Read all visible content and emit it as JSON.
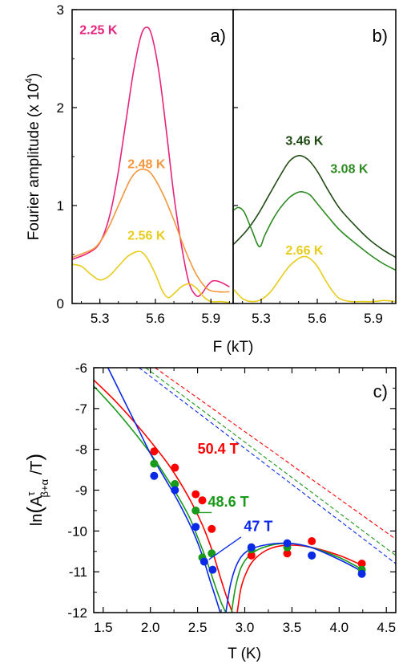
{
  "colors": {
    "axis": "#000000",
    "magenta": "#e8237c",
    "orange": "#f5963c",
    "yellow": "#e8cc1a",
    "dark_green": "#1f4a14",
    "green": "#2e8b22",
    "red": "#ff0000",
    "green_c": "#1a9a1a",
    "blue": "#0a2ae8"
  },
  "chart_data": [
    {
      "panel": "a)",
      "type": "line",
      "xlabel": "",
      "ylabel": "Fourier amplitude (x 10^4)",
      "ylabel_parts": {
        "main": "Fourier amplitude (x 10",
        "sup": "4",
        "end": ")"
      },
      "xlim": [
        5.15,
        6.02
      ],
      "ylim": [
        0,
        3
      ],
      "xticks": [
        "5.3",
        "5.6",
        "5.9"
      ],
      "xtick_values": [
        5.3,
        5.6,
        5.9
      ],
      "yticks": [
        "0",
        "1",
        "2",
        "3"
      ],
      "ytick_values": [
        0,
        1,
        2,
        3
      ],
      "series": [
        {
          "name": "2.25 K",
          "color_key": "magenta",
          "x": [
            5.15,
            5.22,
            5.28,
            5.32,
            5.36,
            5.4,
            5.44,
            5.48,
            5.52,
            5.55,
            5.58,
            5.62,
            5.66,
            5.7,
            5.74,
            5.78,
            5.82,
            5.85,
            5.88,
            5.91,
            5.95,
            6.0
          ],
          "y": [
            0.45,
            0.5,
            0.57,
            0.7,
            0.95,
            1.35,
            1.85,
            2.35,
            2.72,
            2.82,
            2.74,
            2.35,
            1.75,
            1.1,
            0.6,
            0.22,
            0.08,
            0.1,
            0.18,
            0.23,
            0.22,
            0.17
          ]
        },
        {
          "name": "2.48 K",
          "color_key": "orange",
          "x": [
            5.15,
            5.22,
            5.28,
            5.34,
            5.4,
            5.46,
            5.5,
            5.54,
            5.58,
            5.64,
            5.7,
            5.76,
            5.82,
            5.88,
            5.94,
            6.0
          ],
          "y": [
            0.47,
            0.52,
            0.58,
            0.75,
            1.0,
            1.25,
            1.35,
            1.37,
            1.32,
            1.12,
            0.85,
            0.55,
            0.3,
            0.15,
            0.12,
            0.12
          ]
        },
        {
          "name": "2.56 K",
          "color_key": "yellow",
          "x": [
            5.15,
            5.2,
            5.25,
            5.3,
            5.35,
            5.4,
            5.45,
            5.5,
            5.53,
            5.56,
            5.6,
            5.64,
            5.67,
            5.7,
            5.74,
            5.78,
            5.82,
            5.86,
            5.9,
            5.95,
            6.0
          ],
          "y": [
            0.4,
            0.38,
            0.3,
            0.24,
            0.28,
            0.38,
            0.48,
            0.53,
            0.52,
            0.45,
            0.3,
            0.12,
            0.06,
            0.1,
            0.17,
            0.2,
            0.16,
            0.07,
            0.02,
            0.02,
            0.01
          ]
        }
      ],
      "labels": [
        {
          "text": "2.25 K",
          "color_key": "magenta",
          "x": 5.19,
          "y": 2.75
        },
        {
          "text": "2.48 K",
          "color_key": "orange",
          "x": 5.45,
          "y": 1.38
        },
        {
          "text": "2.56 K",
          "color_key": "yellow",
          "x": 5.45,
          "y": 0.65
        }
      ]
    },
    {
      "panel": "b)",
      "type": "line",
      "xlabel": "F (kT)",
      "xlim": [
        5.15,
        6.02
      ],
      "ylim": [
        0,
        3
      ],
      "xticks": [
        "5.3",
        "5.6",
        "5.9"
      ],
      "xtick_values": [
        5.3,
        5.6,
        5.9
      ],
      "series": [
        {
          "name": "3.46 K",
          "color_key": "dark_green",
          "x": [
            5.15,
            5.22,
            5.28,
            5.34,
            5.4,
            5.45,
            5.5,
            5.55,
            5.6,
            5.66,
            5.72,
            5.8,
            5.88,
            5.95,
            6.02
          ],
          "y": [
            0.6,
            0.74,
            0.9,
            1.1,
            1.3,
            1.45,
            1.51,
            1.47,
            1.35,
            1.15,
            0.97,
            0.8,
            0.65,
            0.55,
            0.47
          ]
        },
        {
          "name": "3.08 K",
          "color_key": "green",
          "x": [
            5.15,
            5.18,
            5.21,
            5.25,
            5.29,
            5.32,
            5.36,
            5.4,
            5.45,
            5.49,
            5.52,
            5.56,
            5.6,
            5.66,
            5.72,
            5.8,
            5.88,
            5.95,
            6.02
          ],
          "y": [
            0.95,
            0.98,
            0.93,
            0.75,
            0.58,
            0.7,
            0.85,
            0.97,
            1.08,
            1.13,
            1.14,
            1.11,
            1.02,
            0.88,
            0.75,
            0.62,
            0.5,
            0.41,
            0.34
          ]
        },
        {
          "name": "2.66 K",
          "color_key": "yellow",
          "x": [
            5.15,
            5.2,
            5.25,
            5.3,
            5.35,
            5.4,
            5.45,
            5.5,
            5.53,
            5.56,
            5.6,
            5.64,
            5.68,
            5.72,
            5.78,
            5.84,
            5.9,
            5.96,
            6.02
          ],
          "y": [
            0.15,
            0.05,
            0.02,
            0.04,
            0.12,
            0.25,
            0.38,
            0.46,
            0.48,
            0.46,
            0.38,
            0.25,
            0.13,
            0.05,
            0.02,
            0.02,
            0.02,
            0.03,
            0.02
          ]
        }
      ],
      "labels": [
        {
          "text": "3.46 K",
          "color_key": "dark_green",
          "x": 5.43,
          "y": 1.62
        },
        {
          "text": "3.08 K",
          "color_key": "green",
          "x": 5.67,
          "y": 1.33
        },
        {
          "text": "2.66 K",
          "color_key": "yellow",
          "x": 5.43,
          "y": 0.5
        }
      ]
    },
    {
      "panel": "c)",
      "type": "scatter",
      "xlabel": "T (K)",
      "ylabel": "ln(A^τ_β+α / T)",
      "ylabel_parts": {
        "prefix": "ln",
        "A": "A",
        "sup": "τ",
        "sub": "β+α",
        "suffix": " /T"
      },
      "xlim": [
        1.4,
        4.6
      ],
      "ylim": [
        -12,
        -6
      ],
      "xticks": [
        "1.5",
        "2.0",
        "2.5",
        "3.0",
        "3.5",
        "4.0",
        "4.5"
      ],
      "xtick_values": [
        1.5,
        2.0,
        2.5,
        3.0,
        3.5,
        4.0,
        4.5
      ],
      "yticks": [
        "-6",
        "-7",
        "-8",
        "-9",
        "-10",
        "-11",
        "-12"
      ],
      "ytick_values": [
        -6,
        -7,
        -8,
        -9,
        -10,
        -11,
        -12
      ],
      "series": [
        {
          "name": "50.4 T",
          "color_key": "red",
          "points_x": [
            2.04,
            2.26,
            2.48,
            2.55,
            2.65,
            3.07,
            3.45,
            3.71,
            4.24
          ],
          "points_y": [
            -8.05,
            -8.45,
            -9.1,
            -9.25,
            -9.95,
            -10.6,
            -10.55,
            -10.25,
            -10.8
          ],
          "fit_left": {
            "x": [
              1.4,
              1.6,
              1.8,
              2.0,
              2.2,
              2.4,
              2.55,
              2.65,
              2.75,
              2.82,
              2.87
            ],
            "y": [
              -6.3,
              -6.75,
              -7.25,
              -7.8,
              -8.4,
              -9.15,
              -9.85,
              -10.45,
              -11.2,
              -11.7,
              -12.0
            ]
          },
          "fit_right": {
            "x": [
              2.92,
              2.96,
              3.02,
              3.1,
              3.25,
              3.45,
              3.7,
              4.0,
              4.25
            ],
            "y": [
              -12.0,
              -11.4,
              -11.0,
              -10.7,
              -10.45,
              -10.35,
              -10.4,
              -10.6,
              -10.85
            ]
          },
          "dashed": {
            "x": [
              2.05,
              4.6
            ],
            "y": [
              -6.0,
              -10.2
            ]
          }
        },
        {
          "name": "48.6 T",
          "color_key": "green_c",
          "points_x": [
            2.04,
            2.26,
            2.48,
            2.55,
            2.65,
            3.07,
            3.45,
            3.71,
            4.24
          ],
          "points_y": [
            -8.35,
            -8.85,
            -9.5,
            -10.65,
            -10.55,
            -10.45,
            -10.4,
            -10.6,
            -10.95
          ],
          "fit_left": {
            "x": [
              1.4,
              1.6,
              1.8,
              2.0,
              2.2,
              2.4,
              2.5,
              2.6,
              2.68,
              2.75,
              2.8
            ],
            "y": [
              -6.45,
              -6.95,
              -7.5,
              -8.1,
              -8.8,
              -9.6,
              -10.15,
              -10.75,
              -11.3,
              -11.75,
              -12.0
            ]
          },
          "fit_right": {
            "x": [
              2.86,
              2.9,
              2.96,
              3.05,
              3.2,
              3.45,
              3.7,
              4.0,
              4.25
            ],
            "y": [
              -12.0,
              -11.4,
              -10.9,
              -10.6,
              -10.4,
              -10.3,
              -10.4,
              -10.65,
              -10.95
            ]
          },
          "dashed": {
            "x": [
              1.95,
              4.6
            ],
            "y": [
              -6.0,
              -10.6
            ]
          }
        },
        {
          "name": "47 T",
          "color_key": "blue",
          "points_x": [
            2.04,
            2.26,
            2.48,
            2.57,
            2.66,
            3.07,
            3.45,
            3.71,
            4.24
          ],
          "points_y": [
            -8.65,
            -9.0,
            -9.9,
            -10.75,
            -10.95,
            -10.4,
            -10.3,
            -10.6,
            -11.05
          ],
          "fit_left": {
            "x": [
              1.55,
              1.7,
              1.85,
              2.0,
              2.15,
              2.3,
              2.45,
              2.55,
              2.63,
              2.7,
              2.74
            ],
            "y": [
              -6.0,
              -6.7,
              -7.4,
              -8.1,
              -8.7,
              -9.3,
              -10.0,
              -10.6,
              -11.2,
              -11.7,
              -12.0
            ]
          },
          "fit_right": {
            "x": [
              2.8,
              2.85,
              2.92,
              3.02,
              3.2,
              3.45,
              3.7,
              4.0,
              4.25
            ],
            "y": [
              -12.0,
              -11.3,
              -10.8,
              -10.5,
              -10.35,
              -10.3,
              -10.4,
              -10.7,
              -11.0
            ]
          },
          "dashed": {
            "x": [
              1.88,
              4.6
            ],
            "y": [
              -6.0,
              -10.8
            ]
          }
        }
      ],
      "labels": [
        {
          "text": "50.4 T",
          "color_key": "red",
          "x": 2.5,
          "y": -8.1
        },
        {
          "text": "48.6 T",
          "color_key": "green_c",
          "x": 2.61,
          "y": -9.4
        },
        {
          "text": "47 T",
          "color_key": "blue",
          "x": 2.99,
          "y": -10.0
        }
      ],
      "leaders": [
        {
          "color_key": "green_c",
          "from": [
            2.65,
            -9.55
          ],
          "to": [
            2.49,
            -9.55
          ]
        },
        {
          "color_key": "blue",
          "from": [
            2.96,
            -10.15
          ],
          "to": [
            2.62,
            -10.7
          ]
        }
      ]
    }
  ]
}
